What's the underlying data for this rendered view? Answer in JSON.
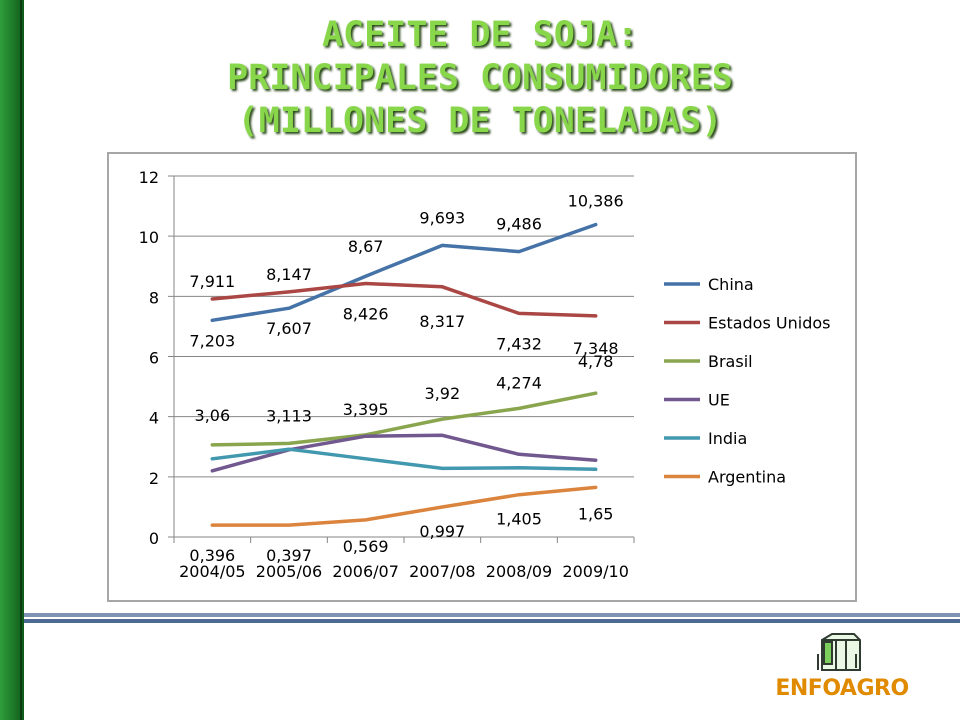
{
  "title": {
    "line1": "ACEITE DE SOJA:",
    "line2": "PRINCIPALES CONSUMIDORES",
    "line3": "(MILLONES DE TONELADAS)"
  },
  "logo": {
    "text": "ENFOAGRO",
    "icon": "silo-icon"
  },
  "colors": {
    "title": "#88d64a",
    "left_bar": "#1e7a29",
    "divider": "#4e6a93",
    "logo": "#e08a00"
  },
  "chart_data": {
    "type": "line",
    "title": "",
    "xlabel": "",
    "ylabel": "",
    "ylim": [
      0,
      12
    ],
    "yticks": [
      0,
      2,
      4,
      6,
      8,
      10,
      12
    ],
    "grid": true,
    "legend_position": "right",
    "categories": [
      "2004/05",
      "2005/06",
      "2006/07",
      "2007/08",
      "2008/09",
      "2009/10"
    ],
    "series": [
      {
        "name": "China",
        "color": "#4572a7",
        "values": [
          7.203,
          7.607,
          8.67,
          9.693,
          9.486,
          10.386
        ],
        "labels": [
          "7,203",
          "7,607",
          "8,67",
          "9,693",
          "9,486",
          "10,386"
        ]
      },
      {
        "name": "Estados Unidos",
        "color": "#aa4643",
        "values": [
          7.911,
          8.147,
          8.426,
          8.317,
          7.432,
          7.348
        ],
        "labels": [
          "7,911",
          "8,147",
          "8,426",
          "8,317",
          "7,432",
          "7,348"
        ]
      },
      {
        "name": "Brasil",
        "color": "#89a54e",
        "values": [
          3.06,
          3.113,
          3.395,
          3.92,
          4.274,
          4.78
        ],
        "labels": [
          "3,06",
          "3,113",
          "3,395",
          "3,92",
          "4,274",
          "4,78"
        ]
      },
      {
        "name": "UE",
        "color": "#71588f",
        "values": [
          2.2,
          2.9,
          3.35,
          3.38,
          2.75,
          2.55
        ],
        "labels": []
      },
      {
        "name": "India",
        "color": "#4198af",
        "values": [
          2.6,
          2.92,
          2.6,
          2.28,
          2.3,
          2.25
        ],
        "labels": []
      },
      {
        "name": "Argentina",
        "color": "#db843d",
        "values": [
          0.396,
          0.397,
          0.569,
          0.997,
          1.405,
          1.65
        ],
        "labels": [
          "0,396",
          "0,397",
          "0,569",
          "0,997",
          "1,405",
          "1,65"
        ]
      }
    ]
  }
}
